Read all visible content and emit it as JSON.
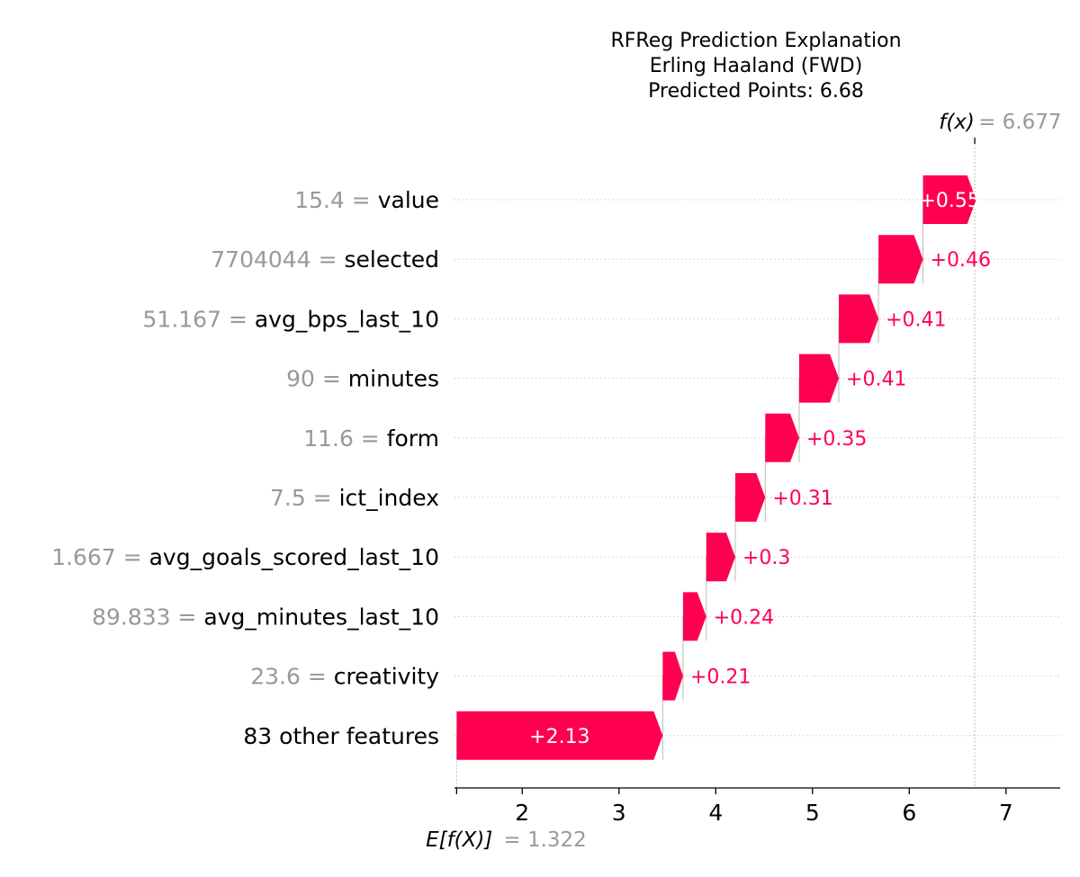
{
  "chart_data": {
    "type": "waterfall",
    "title_lines": [
      "RFReg Prediction Explanation",
      "Erling Haaland (FWD)",
      "Predicted Points: 6.68"
    ],
    "base_value": 1.322,
    "base_label": "E[f(X)]",
    "base_value_text": "= 1.322",
    "fx_value": 6.677,
    "fx_label": "f(x)",
    "fx_value_text": "= 6.677",
    "x_ticks": [
      2,
      3,
      4,
      5,
      6,
      7
    ],
    "xlim": [
      1.3,
      7.56
    ],
    "rows": [
      {
        "feature": "value",
        "value_text": "15.4",
        "contribution": 0.55,
        "label": "+0.55"
      },
      {
        "feature": "selected",
        "value_text": "7704044",
        "contribution": 0.46,
        "label": "+0.46"
      },
      {
        "feature": "avg_bps_last_10",
        "value_text": "51.167",
        "contribution": 0.41,
        "label": "+0.41"
      },
      {
        "feature": "minutes",
        "value_text": "90",
        "contribution": 0.41,
        "label": "+0.41"
      },
      {
        "feature": "form",
        "value_text": "11.6",
        "contribution": 0.35,
        "label": "+0.35"
      },
      {
        "feature": "ict_index",
        "value_text": "7.5",
        "contribution": 0.31,
        "label": "+0.31"
      },
      {
        "feature": "avg_goals_scored_last_10",
        "value_text": "1.667",
        "contribution": 0.3,
        "label": "+0.3"
      },
      {
        "feature": "avg_minutes_last_10",
        "value_text": "89.833",
        "contribution": 0.24,
        "label": "+0.24"
      },
      {
        "feature": "creativity",
        "value_text": "23.6",
        "contribution": 0.21,
        "label": "+0.21"
      },
      {
        "feature": "83 other features",
        "value_text": "",
        "contribution": 2.13,
        "label": "+2.13"
      }
    ],
    "colors": {
      "positive": "#ff0051",
      "value_text": "#999999",
      "feature_text": "#000000",
      "gridline": "#cccccc"
    }
  }
}
